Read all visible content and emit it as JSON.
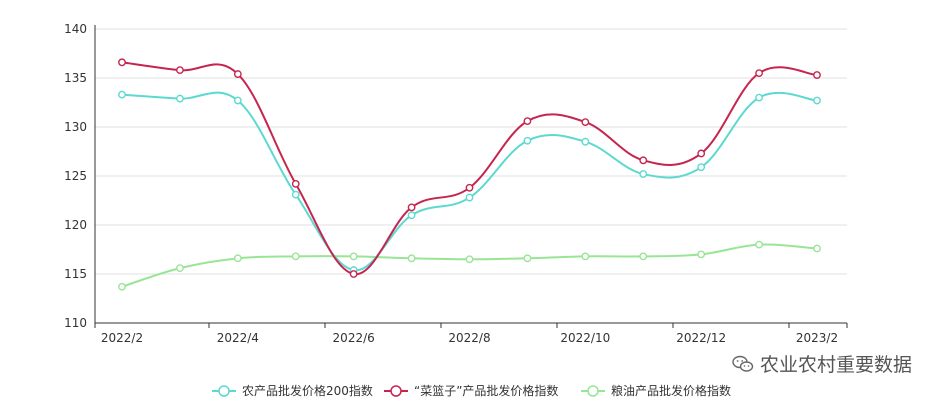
{
  "chart_data": {
    "type": "line",
    "x": [
      "2022/2",
      "2022/3",
      "2022/4",
      "2022/5",
      "2022/6",
      "2022/7",
      "2022/8",
      "2022/9",
      "2022/10",
      "2022/11",
      "2022/12",
      "2023/1",
      "2023/2"
    ],
    "categories_labeled": [
      "2022/2",
      "2022/4",
      "2022/6",
      "2022/8",
      "2022/10",
      "2022/12",
      "2023/2"
    ],
    "ylim": [
      110,
      140
    ],
    "yticks": [
      110,
      115,
      120,
      125,
      130,
      135,
      140
    ],
    "grid": true,
    "legend_position": "bottom",
    "series": [
      {
        "name": "农产品批发价格200指数",
        "color": "#5cd9d0",
        "values": [
          133.3,
          132.9,
          132.7,
          123.1,
          115.4,
          121.0,
          122.8,
          128.6,
          128.5,
          125.2,
          125.9,
          133.0,
          132.7
        ]
      },
      {
        "name": "“菜篮子”产品批发价格指数",
        "color": "#c5254e",
        "values": [
          136.6,
          135.8,
          135.4,
          124.2,
          115.0,
          121.8,
          123.8,
          130.6,
          130.5,
          126.6,
          127.3,
          135.5,
          135.3
        ]
      },
      {
        "name": "粮油产品批发价格指数",
        "color": "#99e596",
        "values": [
          113.7,
          115.6,
          116.6,
          116.8,
          116.8,
          116.6,
          116.5,
          116.6,
          116.8,
          116.8,
          117.0,
          118.0,
          117.6
        ]
      }
    ]
  },
  "watermark": {
    "text": "农业农村重要数据",
    "icon": "wechat-icon"
  }
}
